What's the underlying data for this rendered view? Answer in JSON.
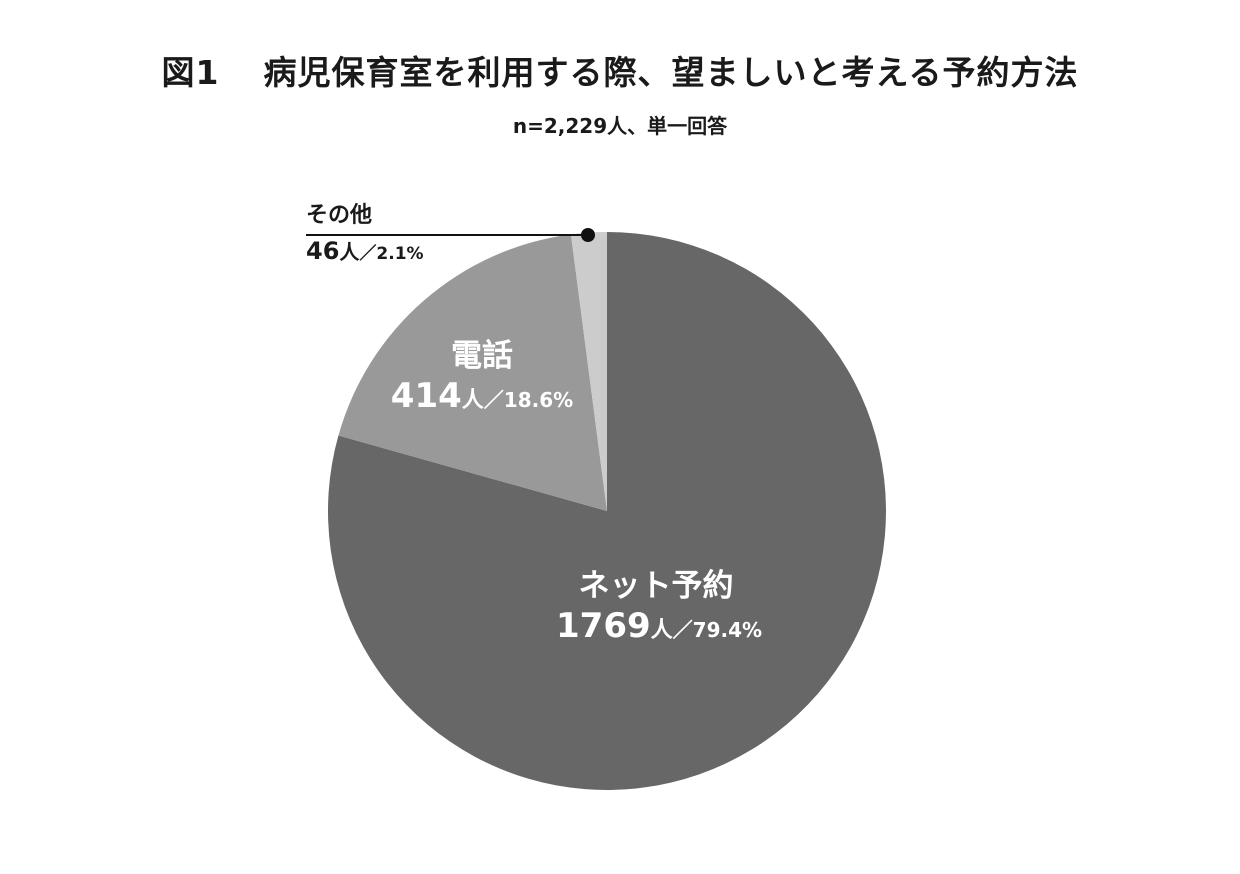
{
  "title": {
    "figure_no": "図1",
    "text": "病児保育室を利用する際、望ましいと考える予約方法"
  },
  "subtitle": "n=2,229人、単一回答",
  "chart_data": {
    "type": "pie",
    "title": "病児保育室を利用する際、望ましいと考える予約方法",
    "n": "n=2,229人、単一回答",
    "slices": [
      {
        "label": "ネット予約",
        "count": 1769,
        "unit": "人",
        "percent": 79.4,
        "percent_text": "79.4%",
        "color": "#676767"
      },
      {
        "label": "電話",
        "count": 414,
        "unit": "人",
        "percent": 18.6,
        "percent_text": "18.6%",
        "color": "#999999"
      },
      {
        "label": "その他",
        "count": 46,
        "unit": "人",
        "percent": 2.1,
        "percent_text": "2.1%",
        "color": "#cccccc"
      }
    ],
    "separator": "／"
  }
}
